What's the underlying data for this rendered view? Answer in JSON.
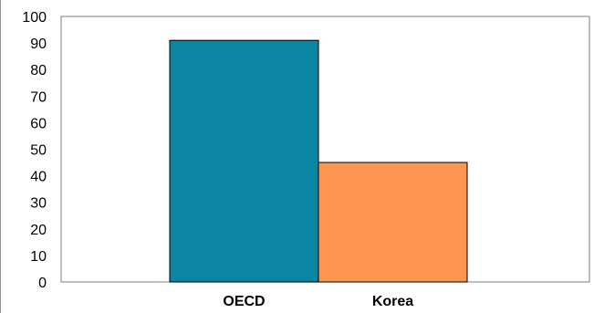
{
  "header_text": "",
  "chart_data": {
    "type": "bar",
    "categories": [
      "OECD",
      "Korea"
    ],
    "values": [
      91,
      45
    ],
    "colors": [
      "#0a86a5",
      "#ff964f"
    ],
    "ylim": [
      0,
      100
    ],
    "yticks": [
      0,
      10,
      20,
      30,
      40,
      50,
      60,
      70,
      80,
      90,
      100
    ],
    "grid": false,
    "title": "",
    "xlabel": "",
    "ylabel": ""
  }
}
